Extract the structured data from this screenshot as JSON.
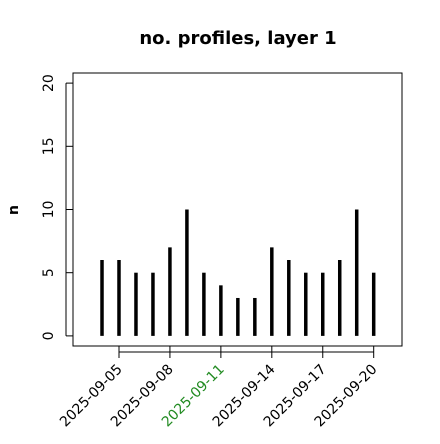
{
  "chart_data": {
    "type": "vlines",
    "title": "no. profiles, layer 1",
    "y_label": "n",
    "x": [
      "2025-09-04",
      "2025-09-05",
      "2025-09-06",
      "2025-09-07",
      "2025-09-08",
      "2025-09-09",
      "2025-09-10",
      "2025-09-11",
      "2025-09-12",
      "2025-09-13",
      "2025-09-14",
      "2025-09-15",
      "2025-09-16",
      "2025-09-17",
      "2025-09-18",
      "2025-09-19",
      "2025-09-20"
    ],
    "values": [
      6,
      6,
      5,
      5,
      7,
      10,
      5,
      4,
      3,
      3,
      7,
      6,
      5,
      5,
      6,
      10,
      5
    ],
    "color": "#000000",
    "xlim": [
      "2025-09-02T07:00",
      "2025-09-21T16:00"
    ],
    "xticks": [
      "2025-09-05",
      "2025-09-08",
      "2025-09-11",
      "2025-09-14",
      "2025-09-17",
      "2025-09-20"
    ],
    "xtick_label_colors": [
      "#000000",
      "#000000",
      "#228b22",
      "#000000",
      "#000000",
      "#000000"
    ],
    "ylim": [
      -0.8,
      20.8
    ],
    "yticks": [
      0,
      5,
      10,
      15,
      20
    ]
  }
}
